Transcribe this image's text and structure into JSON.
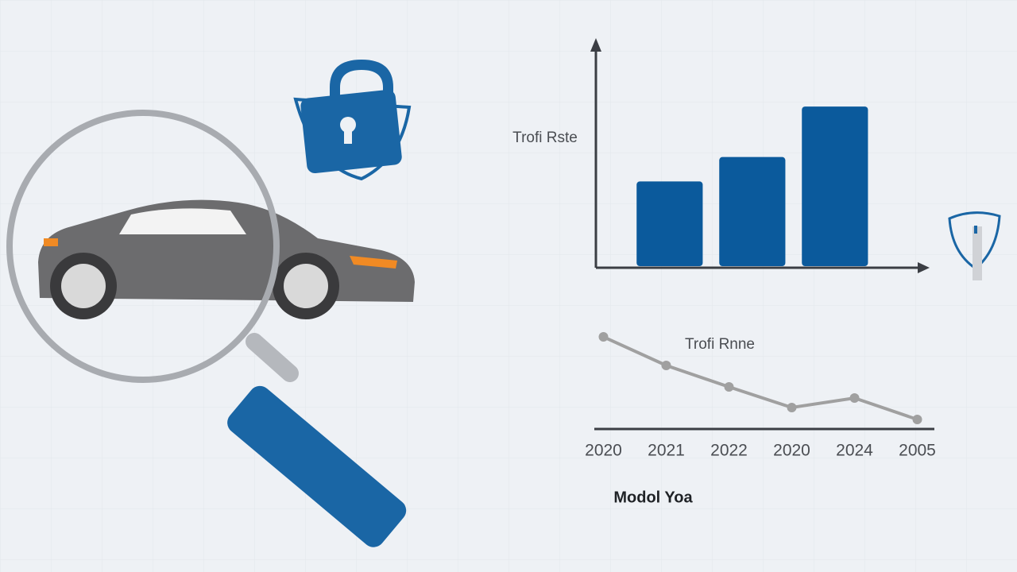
{
  "chart_data": [
    {
      "type": "bar",
      "ylabel": "Trofi Rste",
      "categories": [
        null,
        null,
        null
      ],
      "values": [
        52,
        67,
        98
      ],
      "color": "#0b5a9c",
      "ylim": [
        0,
        100
      ]
    },
    {
      "type": "line",
      "title": "Trofi Rnne",
      "xlabel": "Modol Yoa",
      "categories": [
        "2020",
        "2021",
        "2022",
        "2020",
        "2024",
        "2005"
      ],
      "values": [
        116,
        80,
        53,
        27,
        39,
        12
      ],
      "color": "#a0a0a0",
      "ylim": [
        0,
        120
      ]
    }
  ]
}
